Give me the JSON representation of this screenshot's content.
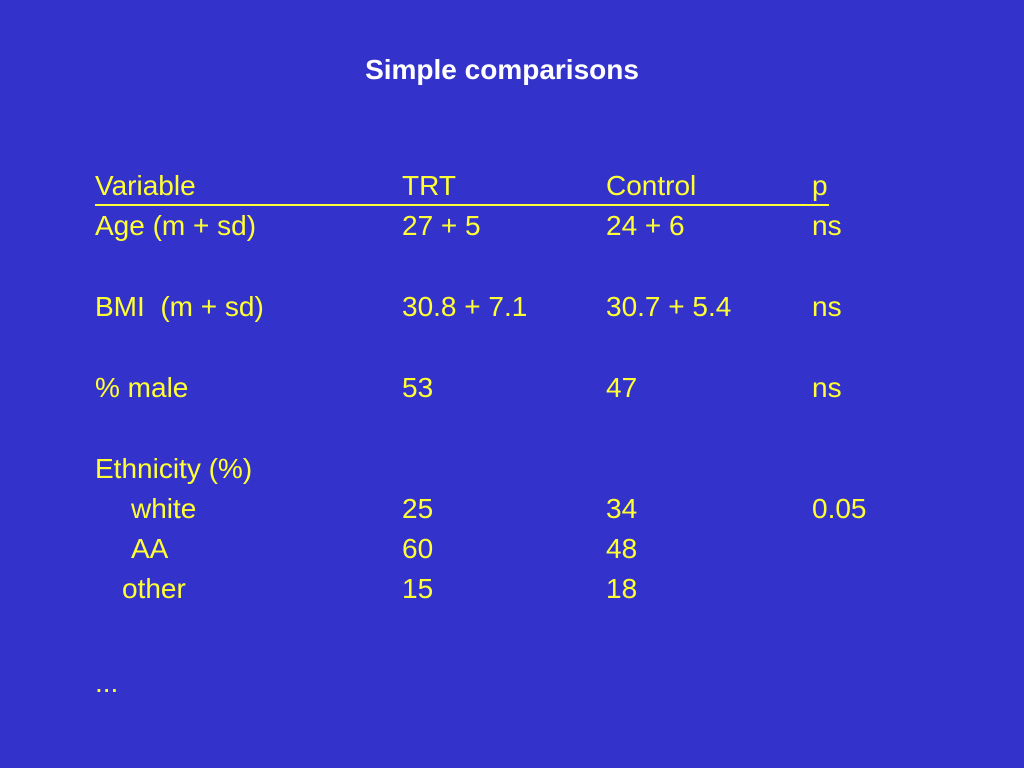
{
  "slide": {
    "title": "Simple comparisons",
    "header": {
      "variable": "Variable",
      "trt": "TRT",
      "control": "Control",
      "p": "p"
    },
    "rows": [
      {
        "variable": "Age (m + sd)",
        "trt": "27 + 5",
        "control": "24 + 6",
        "p": "ns"
      },
      {
        "variable": "BMI  (m + sd)",
        "trt": "30.8 + 7.1",
        "control": "30.7 + 5.4",
        "p": "ns"
      },
      {
        "variable": "% male",
        "trt": "53",
        "control": "47",
        "p": "ns"
      },
      {
        "variable": "Ethnicity (%)",
        "trt": "",
        "control": "",
        "p": ""
      },
      {
        "variable": "white",
        "trt": "25",
        "control": "34",
        "p": "0.05"
      },
      {
        "variable": "AA",
        "trt": "60",
        "control": "48",
        "p": ""
      },
      {
        "variable": "other",
        "trt": "15",
        "control": "18",
        "p": ""
      }
    ],
    "ellipsis": "..."
  },
  "colors": {
    "background": "#3333cc",
    "title": "#ffffff",
    "body_text": "#ffff33"
  }
}
